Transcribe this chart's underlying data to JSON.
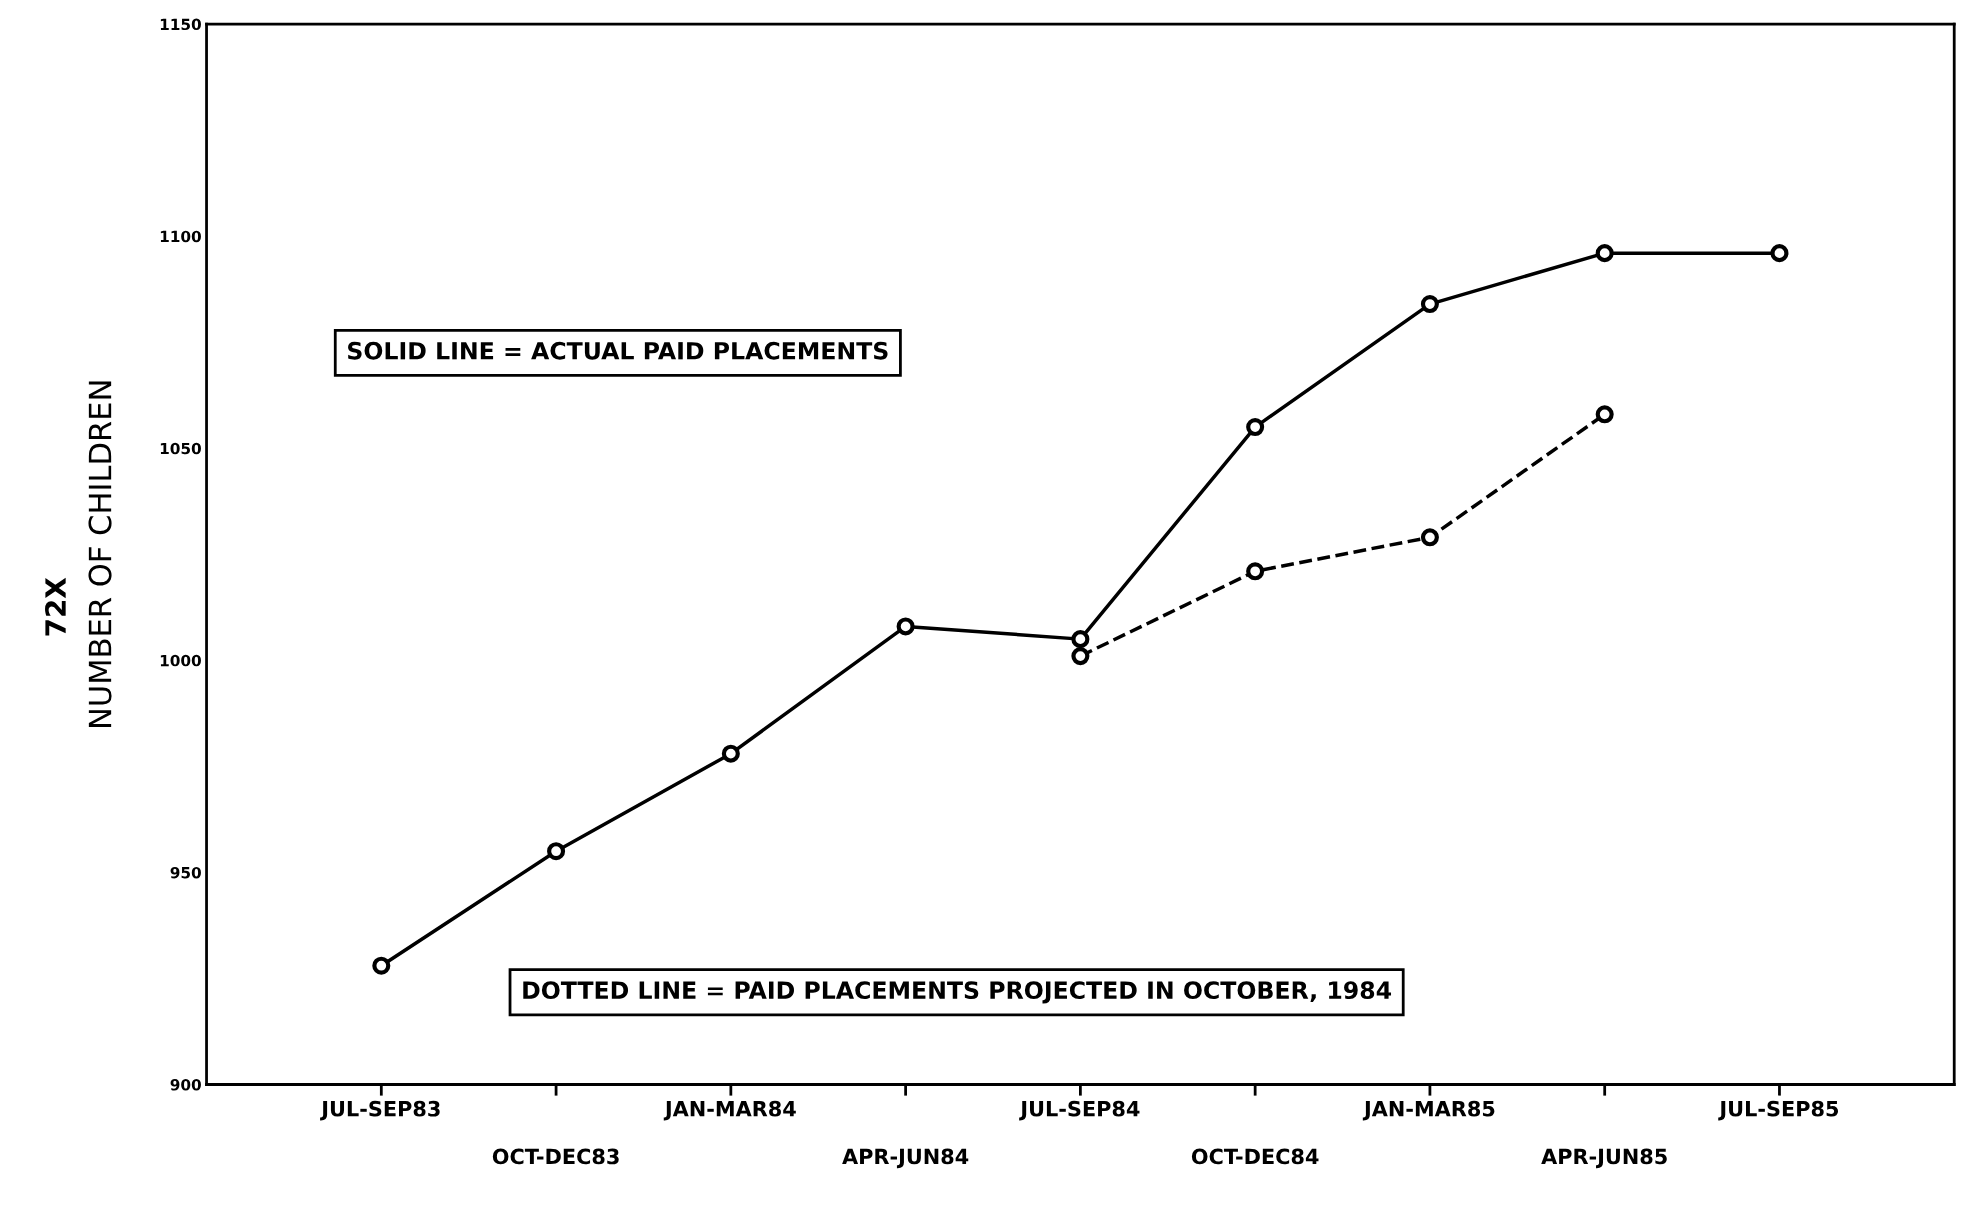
{
  "chart_data": {
    "type": "line",
    "ylabel": "NUMBER OF CHILDREN",
    "categories": [
      "JUL-SEP83",
      "OCT-DEC83",
      "JAN-MAR84",
      "APR-JUN84",
      "JUL-SEP84",
      "OCT-DEC84",
      "JAN-MAR85",
      "APR-JUN85",
      "JUL-SEP85"
    ],
    "series": [
      {
        "color": "#000000",
        "line_style": "solid",
        "values": [
          928,
          955,
          978,
          1008,
          1005,
          1055,
          1084,
          1096,
          1096
        ]
      },
      {
        "color": "#000000",
        "line_style": "dashed",
        "values": [
          null,
          null,
          null,
          null,
          1001,
          1021,
          1029,
          1058,
          null
        ]
      }
    ],
    "ylim": [
      900,
      1150
    ],
    "yticks": [
      900,
      950,
      1000,
      1050,
      1100,
      1150
    ],
    "grid": false,
    "legend": false,
    "marker": "circle",
    "annotations": [
      "SOLID LINE = ACTUAL PAID PLACEMENTS",
      "DOTTED LINE = PAID PLACEMENTS PROJECTED IN OCTOBER, 1984",
      "72X"
    ]
  }
}
